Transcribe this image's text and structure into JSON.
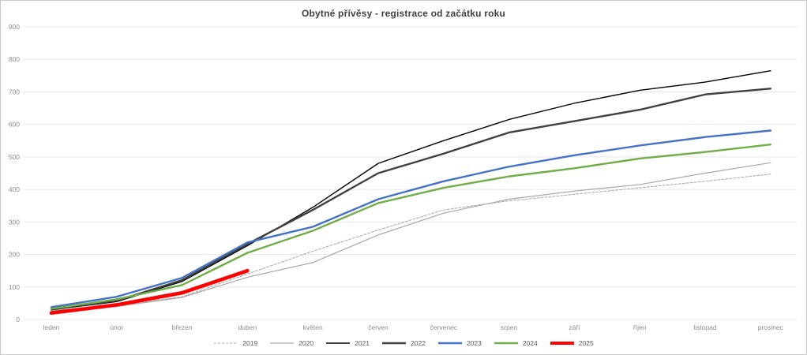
{
  "chart_data": {
    "type": "line",
    "title": "Obytné přívěsy - registrace od začátku roku",
    "xlabel": "",
    "ylabel": "",
    "ylim": [
      0,
      900
    ],
    "yticks": [
      0,
      100,
      200,
      300,
      400,
      500,
      600,
      700,
      800,
      900
    ],
    "grid": true,
    "legend_position": "bottom",
    "categories": [
      "leden",
      "únor",
      "březen",
      "duben",
      "květen",
      "červen",
      "červenec",
      "srpen",
      "září",
      "říjen",
      "listopad",
      "prosinec"
    ],
    "series": [
      {
        "name": "2019",
        "color": "#a6a6a6",
        "width": 1,
        "dash": "3 2",
        "values": [
          26,
          42,
          70,
          140,
          210,
          275,
          337,
          365,
          385,
          405,
          425,
          447
        ]
      },
      {
        "name": "2020",
        "color": "#a6a6a6",
        "width": 1.2,
        "dash": "",
        "values": [
          28,
          40,
          68,
          130,
          175,
          260,
          327,
          370,
          395,
          415,
          450,
          482
        ]
      },
      {
        "name": "2021",
        "color": "#000000",
        "width": 1.4,
        "dash": "",
        "values": [
          30,
          55,
          117,
          227,
          345,
          480,
          550,
          615,
          665,
          705,
          730,
          765
        ]
      },
      {
        "name": "2022",
        "color": "#404040",
        "width": 2.4,
        "dash": "",
        "values": [
          32,
          58,
          121,
          232,
          337,
          450,
          510,
          575,
          610,
          645,
          692,
          710
        ]
      },
      {
        "name": "2023",
        "color": "#4472c4",
        "width": 2.4,
        "dash": "",
        "values": [
          38,
          70,
          128,
          237,
          285,
          370,
          425,
          470,
          505,
          535,
          561,
          581
        ]
      },
      {
        "name": "2024",
        "color": "#70ad47",
        "width": 2.4,
        "dash": "",
        "values": [
          33,
          62,
          106,
          205,
          273,
          358,
          405,
          440,
          465,
          495,
          515,
          538
        ]
      },
      {
        "name": "2025",
        "color": "#ff0000",
        "width": 4.6,
        "dash": "",
        "values": [
          20,
          45,
          82,
          150,
          null,
          null,
          null,
          null,
          null,
          null,
          null,
          null
        ]
      }
    ],
    "colors": {
      "gridline": "#e7e7e7",
      "axis_label": "#8c8c8c",
      "legend_label": "#595959",
      "title": "#404040"
    }
  }
}
